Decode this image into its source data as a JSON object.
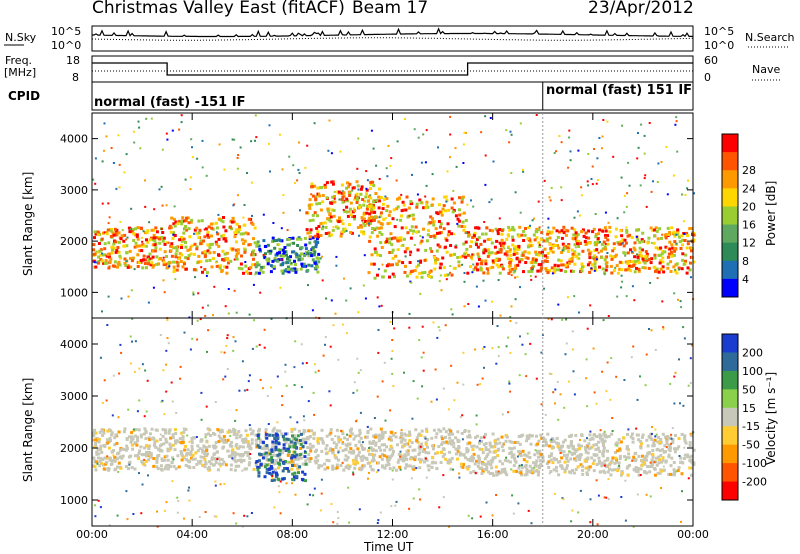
{
  "header": {
    "title": "Christmas Valley East (fitACF)",
    "beam": "Beam 17",
    "date": "23/Apr/2012"
  },
  "strips": {
    "nsky_label": "N.Sky",
    "nsky_ticks": [
      "10^5",
      "10^0"
    ],
    "nsearch_label": "N.Search",
    "freq_label_1": "Freq.",
    "freq_label_2": "[MHz]",
    "freq_ticks": [
      "18",
      "8"
    ],
    "nave_label": "Nave",
    "nave_ticks": [
      "60",
      "0"
    ],
    "cpid_label": "CPID",
    "cpid_modes": [
      "normal (fast) -151 IF",
      "normal (fast) 151 IF"
    ]
  },
  "chart_data": [
    {
      "type": "heatmap",
      "panel": "power",
      "ylabel": "Slant Range [km]",
      "xlabel": "Time UT",
      "ylim": [
        500,
        4500
      ],
      "yticks": [
        1000,
        2000,
        3000,
        4000
      ],
      "x_ticks": [
        "00:00",
        "04:00",
        "08:00",
        "12:00",
        "16:00",
        "20:00",
        "00:00"
      ],
      "colorbar": {
        "label": "Power [dB]",
        "ticks": [
          "4",
          "8",
          "12",
          "16",
          "20",
          "24",
          "28"
        ],
        "colors": [
          "#0000ff",
          "#1f6fb4",
          "#2e8b57",
          "#5fa85f",
          "#9acd32",
          "#ffd700",
          "#ff9900",
          "#ff5500",
          "#ff0000"
        ]
      },
      "bands": [
        {
          "t0": 0.0,
          "t1": 3.0,
          "r0": 1500,
          "r1": 2300,
          "level": "high"
        },
        {
          "t0": 3.0,
          "t1": 6.5,
          "r0": 1400,
          "r1": 2500,
          "level": "high"
        },
        {
          "t0": 6.5,
          "t1": 9.0,
          "r0": 1400,
          "r1": 2100,
          "level": "mixed"
        },
        {
          "t0": 8.5,
          "t1": 11.5,
          "r0": 2100,
          "r1": 3200,
          "level": "high"
        },
        {
          "t0": 11.0,
          "t1": 15.0,
          "r0": 1300,
          "r1": 2900,
          "level": "high"
        },
        {
          "t0": 15.0,
          "t1": 24.0,
          "r0": 1400,
          "r1": 2300,
          "level": "high"
        }
      ]
    },
    {
      "type": "heatmap",
      "panel": "velocity",
      "ylabel": "Slant Range [km]",
      "xlabel": "Time UT",
      "ylim": [
        500,
        4500
      ],
      "yticks": [
        1000,
        2000,
        3000,
        4000
      ],
      "x_ticks": [
        "00:00",
        "04:00",
        "08:00",
        "12:00",
        "16:00",
        "20:00",
        "00:00"
      ],
      "colorbar": {
        "label": "Velocity [m s⁻¹]",
        "ticks": [
          "200",
          "100",
          "50",
          "15",
          "-15",
          "-50",
          "-100",
          "-200"
        ],
        "colors": [
          "#1a3ccf",
          "#2e6b9a",
          "#3b9b48",
          "#8bd04a",
          "#c8c8b8",
          "#ffcc33",
          "#ff9900",
          "#ff5500",
          "#ff0000"
        ]
      },
      "bands": [
        {
          "t0": 0.0,
          "t1": 15.0,
          "r0": 1600,
          "r1": 2400,
          "level": "ground"
        },
        {
          "t0": 6.5,
          "t1": 8.5,
          "r0": 1400,
          "r1": 2300,
          "level": "positive"
        },
        {
          "t0": 15.0,
          "t1": 24.0,
          "r0": 1500,
          "r1": 2300,
          "level": "ground"
        }
      ]
    }
  ]
}
